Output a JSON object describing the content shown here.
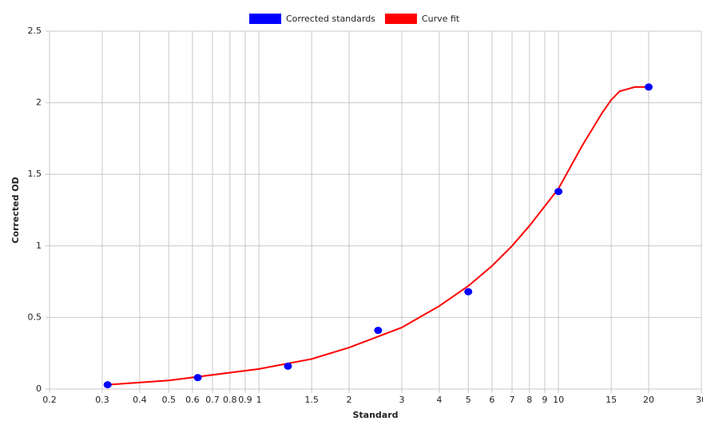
{
  "chart_data": {
    "type": "scatter",
    "x_label": "Standard",
    "y_label": "Corrected OD",
    "xscale": "log",
    "grid": true,
    "legend": "top",
    "xlim": [
      0.2,
      30
    ],
    "xticks": [
      0.2,
      0.3,
      0.4,
      0.5,
      0.6,
      0.7,
      0.8,
      0.9,
      1,
      1.5,
      2,
      3,
      4,
      5,
      6,
      7,
      8,
      9,
      10,
      15,
      20,
      30
    ],
    "ylim": [
      0,
      2.5
    ],
    "yticks": [
      0,
      0.5,
      1,
      1.5,
      2,
      2.5
    ],
    "series": [
      {
        "name": "Corrected standards",
        "kind": "scatter",
        "color": "#0000ff",
        "x": [
          0.3125,
          0.625,
          1.25,
          2.5,
          5,
          10,
          20
        ],
        "values": [
          0.03,
          0.08,
          0.16,
          0.41,
          0.68,
          1.38,
          2.11
        ]
      },
      {
        "name": "Curve fit",
        "kind": "line",
        "color": "#ff0000",
        "x": [
          0.3125,
          0.5,
          1,
          1.5,
          2,
          3,
          4,
          5,
          6,
          7,
          8,
          10,
          12,
          14,
          15,
          16,
          18,
          20
        ],
        "values": [
          0.03,
          0.06,
          0.14,
          0.21,
          0.29,
          0.43,
          0.58,
          0.72,
          0.86,
          1.0,
          1.14,
          1.4,
          1.7,
          1.93,
          2.02,
          2.08,
          2.11,
          2.11
        ]
      }
    ]
  }
}
